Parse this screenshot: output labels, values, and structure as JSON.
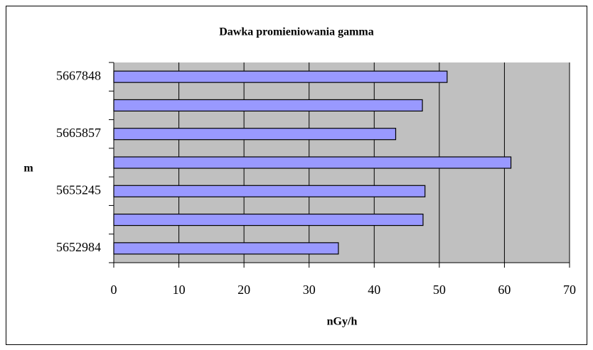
{
  "chart_data": {
    "type": "bar",
    "orientation": "horizontal",
    "title": "Dawka promieniowania gamma",
    "x_label": "nGy/h",
    "y_label": "m",
    "categories": [
      "5652984",
      null,
      "5655245",
      null,
      "5665857",
      null,
      "5667848"
    ],
    "values": [
      34.5,
      47.5,
      47.8,
      61,
      43.3,
      47.4,
      51.2
    ],
    "color": "#9999ff",
    "plot_background": "#c0c0c0",
    "xlim": [
      0,
      70
    ],
    "xticks": [
      0,
      10,
      20,
      30,
      40,
      50,
      60,
      70
    ],
    "grid": true
  }
}
